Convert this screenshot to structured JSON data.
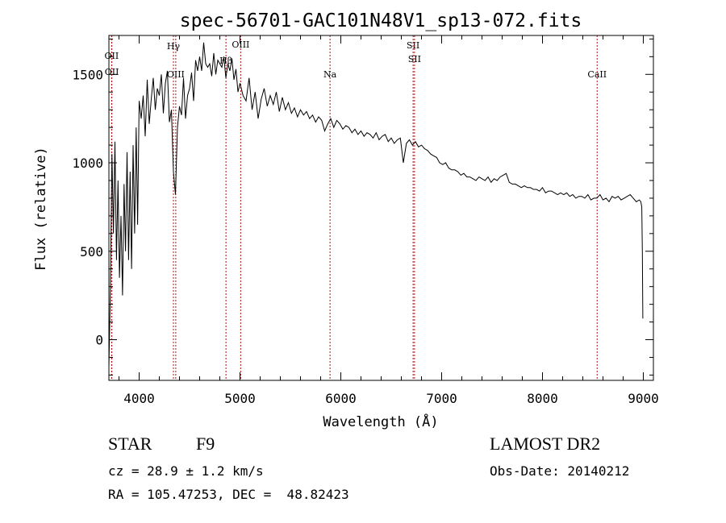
{
  "chart_data": {
    "type": "line",
    "title": "spec-56701-GAC101N48V1_sp13-072.fits",
    "xlabel": "Wavelength (Å)",
    "ylabel": "Flux (relative)",
    "xlim": [
      3700,
      9100
    ],
    "ylim": [
      -230,
      1720
    ],
    "xticks": [
      "4000",
      "5000",
      "6000",
      "7000",
      "8000",
      "9000"
    ],
    "yticks": [
      "0",
      "500",
      "1000",
      "1500"
    ],
    "grid": false,
    "series": [
      {
        "color": "#000000",
        "x": [
          3700,
          3715,
          3730,
          3745,
          3760,
          3775,
          3790,
          3805,
          3820,
          3835,
          3850,
          3865,
          3880,
          3895,
          3910,
          3925,
          3940,
          3955,
          3970,
          3985,
          4000,
          4020,
          4040,
          4060,
          4080,
          4100,
          4120,
          4140,
          4160,
          4180,
          4200,
          4220,
          4240,
          4260,
          4280,
          4300,
          4320,
          4340,
          4360,
          4380,
          4400,
          4420,
          4440,
          4460,
          4480,
          4500,
          4520,
          4540,
          4560,
          4580,
          4600,
          4620,
          4640,
          4660,
          4680,
          4700,
          4720,
          4740,
          4760,
          4780,
          4800,
          4820,
          4840,
          4860,
          4880,
          4900,
          4920,
          4940,
          4960,
          4980,
          5000,
          5030,
          5060,
          5090,
          5120,
          5150,
          5180,
          5210,
          5240,
          5270,
          5300,
          5330,
          5360,
          5390,
          5420,
          5450,
          5480,
          5510,
          5540,
          5570,
          5600,
          5630,
          5660,
          5690,
          5720,
          5750,
          5780,
          5810,
          5840,
          5870,
          5900,
          5930,
          5960,
          5990,
          6020,
          6050,
          6080,
          6110,
          6140,
          6170,
          6200,
          6230,
          6260,
          6290,
          6320,
          6350,
          6380,
          6410,
          6440,
          6470,
          6500,
          6530,
          6560,
          6590,
          6620,
          6650,
          6680,
          6710,
          6740,
          6770,
          6800,
          6830,
          6860,
          6890,
          6920,
          6950,
          6980,
          7010,
          7040,
          7070,
          7100,
          7130,
          7160,
          7190,
          7220,
          7250,
          7280,
          7310,
          7340,
          7370,
          7400,
          7430,
          7460,
          7490,
          7520,
          7550,
          7580,
          7610,
          7640,
          7670,
          7700,
          7730,
          7760,
          7790,
          7820,
          7850,
          7880,
          7910,
          7940,
          7970,
          8000,
          8030,
          8060,
          8090,
          8120,
          8150,
          8180,
          8210,
          8240,
          8270,
          8300,
          8330,
          8360,
          8390,
          8420,
          8450,
          8480,
          8510,
          8540,
          8570,
          8600,
          8630,
          8660,
          8690,
          8720,
          8750,
          8780,
          8810,
          8840,
          8870,
          8900,
          8930,
          8960,
          8975,
          8985,
          8990,
          8995
        ],
        "y": [
          -150,
          300,
          1050,
          600,
          1120,
          450,
          900,
          350,
          700,
          250,
          880,
          500,
          1060,
          450,
          950,
          400,
          1100,
          600,
          1200,
          650,
          1350,
          1250,
          1380,
          1150,
          1470,
          1220,
          1360,
          1480,
          1300,
          1420,
          1380,
          1500,
          1280,
          1450,
          1520,
          1230,
          1300,
          950,
          820,
          1200,
          1320,
          1270,
          1480,
          1250,
          1380,
          1420,
          1510,
          1350,
          1580,
          1520,
          1600,
          1520,
          1680,
          1560,
          1540,
          1560,
          1490,
          1620,
          1500,
          1580,
          1560,
          1540,
          1600,
          1480,
          1560,
          1520,
          1590,
          1470,
          1530,
          1400,
          1450,
          1380,
          1350,
          1480,
          1300,
          1400,
          1250,
          1360,
          1420,
          1320,
          1380,
          1330,
          1400,
          1290,
          1370,
          1300,
          1340,
          1280,
          1310,
          1260,
          1300,
          1270,
          1290,
          1250,
          1270,
          1230,
          1260,
          1240,
          1180,
          1220,
          1250,
          1200,
          1240,
          1220,
          1190,
          1210,
          1200,
          1170,
          1190,
          1160,
          1180,
          1150,
          1170,
          1160,
          1140,
          1170,
          1130,
          1150,
          1160,
          1120,
          1140,
          1110,
          1130,
          1140,
          1000,
          1110,
          1130,
          1100,
          1120,
          1090,
          1100,
          1080,
          1070,
          1050,
          1040,
          1030,
          1000,
          990,
          1000,
          970,
          960,
          960,
          950,
          930,
          940,
          920,
          920,
          910,
          900,
          920,
          910,
          900,
          920,
          890,
          910,
          900,
          920,
          930,
          940,
          890,
          880,
          880,
          870,
          860,
          870,
          860,
          860,
          850,
          850,
          840,
          860,
          830,
          840,
          840,
          830,
          820,
          830,
          820,
          830,
          810,
          820,
          800,
          810,
          810,
          800,
          820,
          790,
          800,
          800,
          820,
          790,
          800,
          780,
          810,
          800,
          810,
          790,
          800,
          810,
          820,
          800,
          780,
          790,
          780,
          750,
          500,
          120
        ]
      }
    ],
    "lines": [
      {
        "x": 3727,
        "label": "OII"
      },
      {
        "x": 3729,
        "label": "OII"
      },
      {
        "x": 4340,
        "label": "Hγ"
      },
      {
        "x": 4363,
        "label": "OIII"
      },
      {
        "x": 4861,
        "label": "Hβ"
      },
      {
        "x": 5007,
        "label": "OIII"
      },
      {
        "x": 5893,
        "label": "Na"
      },
      {
        "x": 6717,
        "label": "SII"
      },
      {
        "x": 6731,
        "label": "SII"
      },
      {
        "x": 8542,
        "label": "CaII"
      }
    ]
  },
  "info": {
    "class": "STAR",
    "subclass": "F9",
    "survey": "LAMOST DR2",
    "cz": "cz = 28.9 ± 1.2 km/s",
    "obsdate": "Obs-Date: 20140212",
    "radec": "RA = 105.47253, DEC =  48.82423"
  },
  "colors": {
    "line_marker": "#b01010",
    "spectrum": "#000000",
    "axes": "#000000"
  }
}
